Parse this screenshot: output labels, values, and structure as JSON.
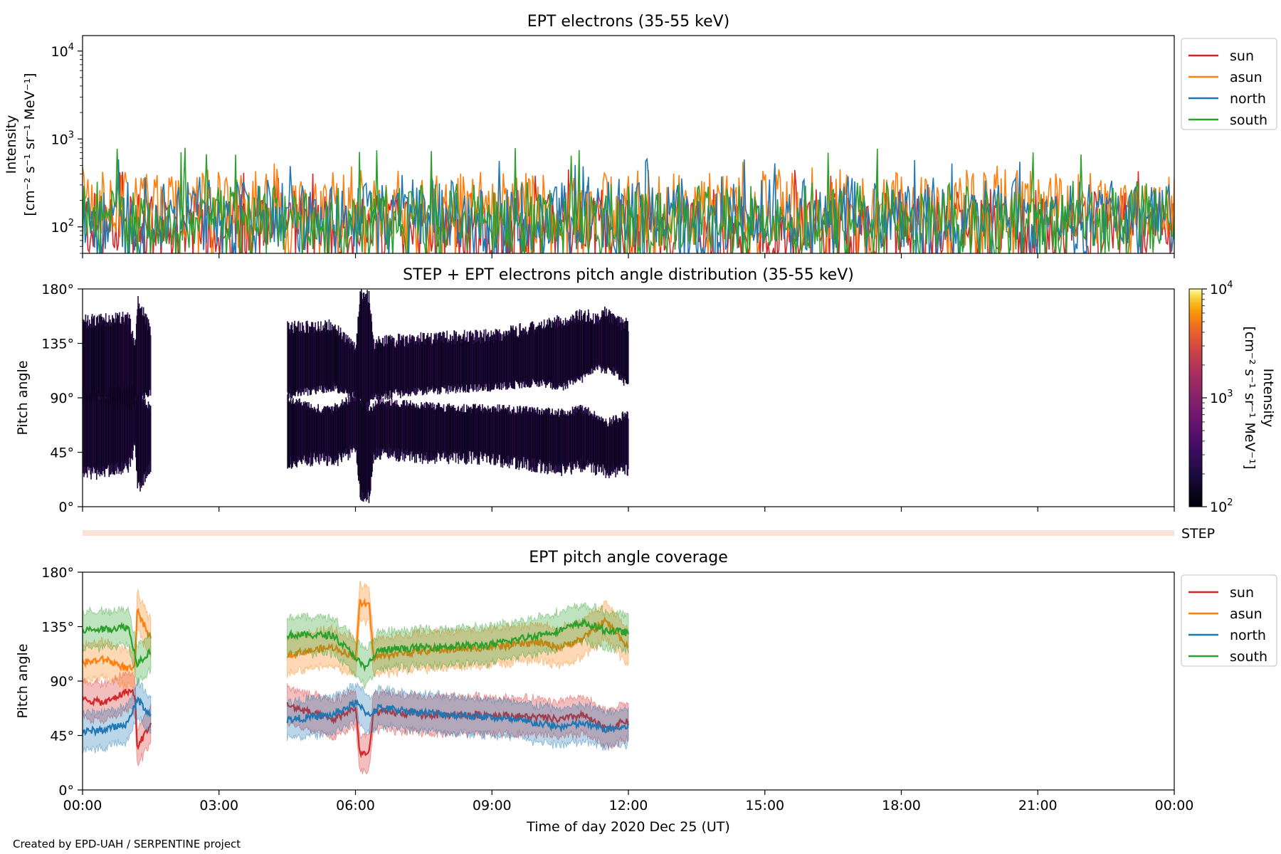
{
  "footer": "Created by EPD-UAH / SERPENTINE project",
  "colors": {
    "sun": "#d62728",
    "asun": "#ff7f0e",
    "north": "#1f77b4",
    "south": "#2ca02c",
    "step": "#fde0d6"
  },
  "time_ticks": [
    "00:00",
    "03:00",
    "06:00",
    "09:00",
    "12:00",
    "15:00",
    "18:00",
    "21:00",
    "00:00"
  ],
  "xlabel": "Time of day 2020 Dec 25 (UT)",
  "chart_data": [
    {
      "type": "line",
      "title": "EPT electrons (35-55 keV)",
      "ylabel_line1": "Intensity",
      "ylabel_line2": "[cm⁻² s⁻¹ sr⁻¹ MeV⁻¹]",
      "yscale": "log",
      "ylim": [
        50,
        15000
      ],
      "yticks": [
        {
          "value": 100,
          "base": "10",
          "exp": "2"
        },
        {
          "value": 1000,
          "base": "10",
          "exp": "3"
        },
        {
          "value": 10000,
          "base": "10",
          "exp": "4"
        }
      ],
      "xlim_hours": [
        0,
        24
      ],
      "legend_position": "outside-right",
      "series": [
        {
          "name": "sun",
          "typical": [
            50,
            300
          ],
          "peak": 450
        },
        {
          "name": "asun",
          "typical": [
            80,
            500
          ],
          "peak": 560
        },
        {
          "name": "north",
          "typical": [
            60,
            400
          ],
          "peak": 600
        },
        {
          "name": "south",
          "typical": [
            60,
            350
          ],
          "peak": 800
        }
      ]
    },
    {
      "type": "heatmap",
      "title": "STEP + EPT electrons pitch angle distribution (35-55 keV)",
      "ylabel": "Pitch angle",
      "yticks": [
        "0°",
        "45°",
        "90°",
        "135°",
        "180°"
      ],
      "ylim": [
        0,
        180
      ],
      "xlim_hours": [
        0,
        24
      ],
      "colorbar": {
        "label_line1": "Intensity",
        "label_line2": "[cm⁻² s⁻¹ sr⁻¹ MeV⁻¹]",
        "scale": "log",
        "range": [
          100,
          10000
        ],
        "ticks": [
          {
            "value": 100,
            "base": "10",
            "exp": "2"
          },
          {
            "value": 1000,
            "base": "10",
            "exp": "3"
          },
          {
            "value": 10000,
            "base": "10",
            "exp": "4"
          }
        ]
      },
      "data_intervals_hours": [
        [
          0,
          1.5
        ],
        [
          4.5,
          12
        ]
      ],
      "typical_intensity": 150
    },
    {
      "type": "bar",
      "label": "STEP",
      "xlim_hours": [
        0,
        24
      ]
    },
    {
      "type": "area",
      "title": "EPT pitch angle coverage",
      "ylabel": "Pitch angle",
      "yticks": [
        "0°",
        "45°",
        "90°",
        "135°",
        "180°"
      ],
      "ylim": [
        0,
        180
      ],
      "xlim_hours": [
        0,
        24
      ],
      "legend_position": "outside-right",
      "series": [
        {
          "name": "sun",
          "x_hours": [
            0,
            0.5,
            1.0,
            1.15,
            1.2,
            1.5,
            4.5,
            5.5,
            6.0,
            6.1,
            6.3,
            6.4,
            7.5,
            9.0,
            10.0,
            10.5,
            11.0,
            11.5,
            12.0
          ],
          "center": [
            75,
            72,
            82,
            80,
            35,
            55,
            70,
            58,
            68,
            30,
            30,
            65,
            62,
            62,
            60,
            58,
            62,
            50,
            58
          ],
          "halfwidth": 15
        },
        {
          "name": "asun",
          "x_hours": [
            0,
            0.5,
            1.0,
            1.15,
            1.2,
            1.5,
            4.5,
            5.5,
            6.0,
            6.1,
            6.3,
            6.4,
            7.5,
            9.0,
            10.0,
            10.5,
            11.0,
            11.5,
            12.0
          ],
          "center": [
            105,
            108,
            100,
            100,
            148,
            125,
            112,
            118,
            110,
            155,
            152,
            110,
            115,
            118,
            122,
            118,
            125,
            140,
            118
          ],
          "halfwidth": 15
        },
        {
          "name": "north",
          "x_hours": [
            0,
            0.5,
            1.0,
            1.2,
            1.5,
            4.5,
            5.5,
            6.0,
            6.3,
            6.5,
            7.5,
            9.0,
            10.0,
            10.5,
            11.0,
            11.5,
            12.0
          ],
          "center": [
            48,
            50,
            55,
            75,
            62,
            58,
            62,
            72,
            62,
            68,
            64,
            60,
            55,
            52,
            55,
            50,
            52
          ],
          "halfwidth": 15
        },
        {
          "name": "south",
          "x_hours": [
            0,
            0.5,
            1.0,
            1.2,
            1.5,
            4.5,
            5.5,
            6.0,
            6.2,
            6.5,
            7.5,
            9.0,
            10.0,
            10.5,
            11.0,
            11.5,
            12.0
          ],
          "center": [
            132,
            133,
            135,
            105,
            115,
            128,
            128,
            110,
            100,
            115,
            118,
            120,
            128,
            132,
            138,
            132,
            130
          ],
          "halfwidth": 15
        }
      ]
    }
  ]
}
